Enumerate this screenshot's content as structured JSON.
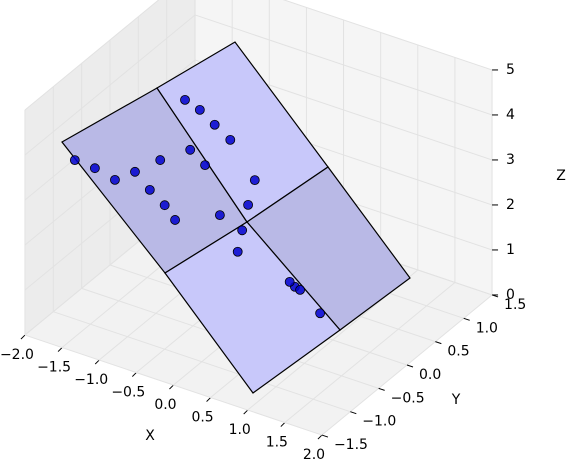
{
  "chart_data": {
    "type": "scatter3d",
    "x_label": "X",
    "y_label": "Y",
    "z_label": "Z",
    "xlim": [
      -2,
      2
    ],
    "ylim": [
      -1.5,
      1.5
    ],
    "zlim": [
      0,
      5
    ],
    "xticks": [
      {
        "value": -2,
        "label": "−2.0"
      },
      {
        "value": -1.5,
        "label": "−1.5"
      },
      {
        "value": -1,
        "label": "−1.0"
      },
      {
        "value": -0.5,
        "label": "−0.5"
      },
      {
        "value": 0,
        "label": "0.0"
      },
      0.5,
      {
        "value": 1,
        "label": "1.0"
      },
      1.5,
      {
        "value": 2,
        "label": "2.0"
      }
    ],
    "yticks": [
      {
        "value": -1.5,
        "label": "−1.5"
      },
      {
        "value": -1,
        "label": "−1.0"
      },
      {
        "value": -0.5,
        "label": "−0.5"
      },
      {
        "value": 0,
        "label": "0.0"
      },
      0.5,
      {
        "value": 1,
        "label": "1.0"
      },
      1.5
    ],
    "zticks": [
      0,
      1,
      2,
      3,
      4,
      5
    ],
    "grid": true,
    "color": "#0000cc",
    "x": [
      -1.71,
      -1.44,
      -1.17,
      -0.9,
      -0.7,
      -0.5,
      -0.36,
      -0.56,
      -0.99,
      -0.79,
      -0.59,
      -0.38,
      -0.72,
      -0.92,
      -0.05,
      -0.14,
      -0.22,
      -0.28,
      -0.52,
      0.49,
      0.56,
      0.42,
      0.83
    ],
    "y": [
      -1,
      -1,
      -1,
      -1,
      -1,
      -1,
      -1,
      -1,
      0,
      0,
      0,
      0,
      0,
      0,
      0,
      0,
      0,
      0,
      0,
      0,
      0,
      0,
      0
    ],
    "z": [
      3.53,
      3.5,
      3.39,
      3.72,
      3.43,
      3.2,
      2.95,
      4.17,
      4.23,
      4.12,
      3.9,
      3.68,
      2.93,
      3.16,
      2.97,
      2.37,
      1.76,
      1.25,
      1.93,
      0.9,
      0.87,
      0.97,
      0.5
    ]
  }
}
